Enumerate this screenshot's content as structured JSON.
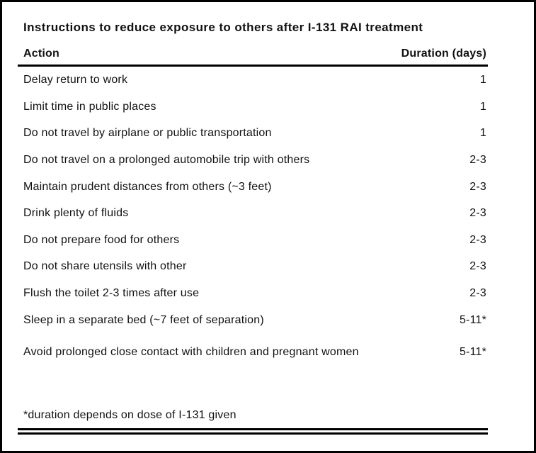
{
  "title": "Instructions to reduce exposure to others after I-131 RAI treatment",
  "table": {
    "columns": {
      "action": "Action",
      "duration": "Duration (days)"
    },
    "rows": [
      {
        "action": "Delay return to work",
        "duration": "1"
      },
      {
        "action": "Limit time in public places",
        "duration": "1"
      },
      {
        "action": "Do not travel by airplane or public transportation",
        "duration": "1"
      },
      {
        "action": "Do not travel on a prolonged automobile trip with others",
        "duration": "2-3"
      },
      {
        "action": "Maintain prudent distances from others (~3 feet)",
        "duration": "2-3"
      },
      {
        "action": "Drink plenty of fluids",
        "duration": "2-3"
      },
      {
        "action": "Do not prepare food for others",
        "duration": "2-3"
      },
      {
        "action": "Do not share utensils with other",
        "duration": "2-3"
      },
      {
        "action": "Flush the toilet 2-3 times after use",
        "duration": "2-3"
      },
      {
        "action": "Sleep in a separate bed (~7 feet of separation)",
        "duration": "5-11*"
      },
      {
        "action": "Avoid prolonged close contact with children and pregnant women",
        "duration": "5-11*"
      }
    ]
  },
  "footnote": "*duration depends on dose of I-131 given",
  "colors": {
    "text": "#111111",
    "rule": "#000000",
    "frame": "#000000",
    "background": "#ffffff"
  }
}
